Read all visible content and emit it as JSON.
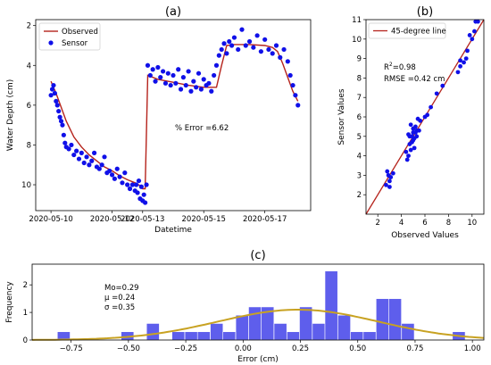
{
  "chart_data": [
    {
      "panel": "(a)",
      "type": "line+scatter",
      "xlabel": "Datetime",
      "ylabel": "Water Depth (cm)",
      "y_inverted": true,
      "ylim": [
        11.3,
        1.7
      ],
      "xlim": [
        "2020-05-09T12:00",
        "2020-05-18T12:00"
      ],
      "xticks": [
        "2020-05-10",
        "2020-05-12",
        "2020-05-13",
        "2020-05-15",
        "2020-05-17"
      ],
      "yticks": [
        2,
        4,
        6,
        8,
        10
      ],
      "legend": [
        "Observed",
        "Sensor"
      ],
      "legend_position": "top-left",
      "annotation": "% Error =6.62",
      "colors": {
        "observed": "#b5231c",
        "sensor": "#1010e8"
      },
      "series": [
        {
          "name": "Observed",
          "kind": "line",
          "x": [
            "2020-05-10T00:00",
            "2020-05-10T04:00",
            "2020-05-10T08:00",
            "2020-05-10T12:00",
            "2020-05-10T18:00",
            "2020-05-11T00:00",
            "2020-05-11T06:00",
            "2020-05-11T12:00",
            "2020-05-11T18:00",
            "2020-05-12T00:00",
            "2020-05-12T06:00",
            "2020-05-12T12:00",
            "2020-05-12T18:00",
            "2020-05-12T22:00",
            "2020-05-13T00:00",
            "2020-05-13T02:00",
            "2020-05-13T04:00",
            "2020-05-13T12:00",
            "2020-05-14T00:00",
            "2020-05-14T12:00",
            "2020-05-15T00:00",
            "2020-05-15T06:00",
            "2020-05-15T10:00",
            "2020-05-15T14:00",
            "2020-05-15T18:00",
            "2020-05-16T00:00",
            "2020-05-16T12:00",
            "2020-05-17T00:00",
            "2020-05-17T06:00",
            "2020-05-17T10:00",
            "2020-05-17T14:00",
            "2020-05-17T18:00",
            "2020-05-17T22:00",
            "2020-05-18T02:00"
          ],
          "y": [
            4.8,
            5.4,
            6.1,
            6.8,
            7.6,
            8.1,
            8.5,
            8.8,
            9.1,
            9.3,
            9.55,
            9.75,
            9.9,
            10.05,
            10.2,
            10.2,
            4.5,
            4.7,
            4.85,
            5.0,
            5.1,
            5.1,
            5.1,
            4.0,
            3.0,
            2.95,
            2.95,
            3.0,
            3.1,
            3.3,
            3.9,
            4.6,
            5.3,
            5.8
          ]
        },
        {
          "name": "Sensor",
          "kind": "scatter",
          "x": [
            "2020-05-10T00:00",
            "2020-05-10T01:00",
            "2020-05-10T02:00",
            "2020-05-10T03:00",
            "2020-05-10T04:00",
            "2020-05-10T05:00",
            "2020-05-10T06:00",
            "2020-05-10T07:00",
            "2020-05-10T08:00",
            "2020-05-10T09:00",
            "2020-05-10T10:00",
            "2020-05-10T11:00",
            "2020-05-10T12:00",
            "2020-05-10T14:00",
            "2020-05-10T16:00",
            "2020-05-10T18:00",
            "2020-05-10T20:00",
            "2020-05-10T22:00",
            "2020-05-11T00:00",
            "2020-05-11T02:00",
            "2020-05-11T04:00",
            "2020-05-11T06:00",
            "2020-05-11T08:00",
            "2020-05-11T10:00",
            "2020-05-11T12:00",
            "2020-05-11T14:00",
            "2020-05-11T16:00",
            "2020-05-11T18:00",
            "2020-05-11T20:00",
            "2020-05-11T22:00",
            "2020-05-12T00:00",
            "2020-05-12T02:00",
            "2020-05-12T04:00",
            "2020-05-12T06:00",
            "2020-05-12T08:00",
            "2020-05-12T10:00",
            "2020-05-12T12:00",
            "2020-05-12T14:00",
            "2020-05-12T16:00",
            "2020-05-12T18:00",
            "2020-05-12T19:00",
            "2020-05-12T20:00",
            "2020-05-12T21:00",
            "2020-05-12T22:00",
            "2020-05-12T23:00",
            "2020-05-13T00:00",
            "2020-05-13T01:00",
            "2020-05-13T02:00",
            "2020-05-13T03:00",
            "2020-05-13T04:00",
            "2020-05-13T06:00",
            "2020-05-13T08:00",
            "2020-05-13T10:00",
            "2020-05-13T12:00",
            "2020-05-13T14:00",
            "2020-05-13T16:00",
            "2020-05-13T18:00",
            "2020-05-13T20:00",
            "2020-05-13T22:00",
            "2020-05-14T00:00",
            "2020-05-14T02:00",
            "2020-05-14T04:00",
            "2020-05-14T06:00",
            "2020-05-14T08:00",
            "2020-05-14T10:00",
            "2020-05-14T12:00",
            "2020-05-14T14:00",
            "2020-05-14T16:00",
            "2020-05-14T18:00",
            "2020-05-14T20:00",
            "2020-05-14T22:00",
            "2020-05-15T00:00",
            "2020-05-15T02:00",
            "2020-05-15T04:00",
            "2020-05-15T06:00",
            "2020-05-15T08:00",
            "2020-05-15T10:00",
            "2020-05-15T12:00",
            "2020-05-15T14:00",
            "2020-05-15T16:00",
            "2020-05-15T18:00",
            "2020-05-15T20:00",
            "2020-05-15T22:00",
            "2020-05-16T00:00",
            "2020-05-16T03:00",
            "2020-05-16T06:00",
            "2020-05-16T09:00",
            "2020-05-16T12:00",
            "2020-05-16T15:00",
            "2020-05-16T18:00",
            "2020-05-16T21:00",
            "2020-05-17T00:00",
            "2020-05-17T03:00",
            "2020-05-17T06:00",
            "2020-05-17T09:00",
            "2020-05-17T12:00",
            "2020-05-17T15:00",
            "2020-05-17T18:00",
            "2020-05-17T20:00",
            "2020-05-17T22:00",
            "2020-05-18T00:00",
            "2020-05-18T02:00"
          ],
          "y": [
            5.5,
            5.2,
            5.0,
            5.4,
            5.8,
            6.0,
            6.3,
            6.6,
            6.8,
            7.0,
            7.5,
            7.9,
            8.1,
            8.2,
            8.0,
            8.5,
            8.3,
            8.7,
            8.4,
            8.9,
            8.6,
            9.0,
            8.8,
            8.4,
            9.1,
            9.2,
            9.0,
            8.6,
            9.4,
            9.3,
            9.5,
            9.7,
            9.2,
            9.6,
            9.9,
            9.4,
            10.0,
            10.2,
            10.0,
            10.3,
            10.0,
            10.4,
            9.8,
            10.7,
            10.1,
            10.8,
            10.5,
            10.9,
            10.0,
            4.0,
            4.5,
            4.2,
            4.8,
            4.1,
            4.6,
            4.3,
            4.9,
            4.4,
            5.0,
            4.5,
            4.9,
            4.2,
            5.2,
            4.6,
            5.0,
            4.3,
            5.3,
            4.8,
            5.1,
            4.4,
            5.2,
            4.7,
            5.0,
            4.9,
            5.3,
            4.5,
            4.0,
            3.5,
            3.2,
            2.9,
            3.4,
            2.8,
            3.0,
            2.6,
            3.2,
            2.2,
            3.0,
            2.8,
            3.1,
            2.5,
            3.3,
            2.7,
            3.2,
            3.4,
            3.0,
            3.6,
            3.2,
            3.8,
            4.5,
            5.0,
            5.5,
            6.0
          ]
        }
      ]
    },
    {
      "panel": "(b)",
      "type": "scatter",
      "xlabel": "Observed Values",
      "ylabel": "Sensor Values",
      "xlim": [
        1.0,
        11.0
      ],
      "ylim": [
        1.0,
        11.0
      ],
      "xticks": [
        2,
        4,
        6,
        8,
        10
      ],
      "yticks": [
        2,
        3,
        4,
        5,
        6,
        7,
        8,
        9,
        10,
        11
      ],
      "legend": [
        "45-degree line"
      ],
      "legend_position": "top-left",
      "stats": {
        "r2_label": "R",
        "r2_exp": "2",
        "r2_value": "=0.98",
        "rmse": "RMSE =0.42 cm"
      },
      "colors": {
        "line": "#b5231c",
        "points": "#1010e8"
      },
      "reference_line": {
        "x": [
          1,
          11
        ],
        "y": [
          1,
          11
        ]
      },
      "points": {
        "x": [
          2.7,
          3.0,
          2.9,
          3.1,
          3.3,
          2.8,
          4.5,
          4.6,
          4.8,
          4.7,
          5.0,
          4.9,
          5.1,
          5.2,
          5.3,
          4.6,
          4.4,
          5.0,
          5.5,
          5.2,
          5.6,
          4.8,
          5.4,
          6.0,
          6.5,
          7.0,
          7.5,
          8.8,
          9.0,
          9.3,
          9.5,
          9.8,
          10.0,
          10.2,
          10.3,
          10.5,
          4.7,
          5.1,
          4.9,
          5.0,
          9.0,
          9.6,
          3.0,
          5.3,
          6.2
        ],
        "y": [
          2.5,
          2.4,
          3.0,
          2.9,
          3.1,
          3.2,
          3.8,
          4.0,
          4.3,
          4.6,
          4.8,
          5.0,
          4.9,
          5.2,
          5.3,
          5.1,
          4.2,
          5.4,
          5.3,
          5.5,
          5.8,
          5.6,
          5.9,
          6.0,
          6.5,
          7.2,
          7.6,
          8.3,
          8.9,
          8.8,
          9.0,
          10.2,
          10.0,
          10.4,
          10.9,
          10.9,
          5.0,
          4.4,
          4.7,
          5.2,
          8.6,
          9.4,
          2.7,
          5.0,
          6.1
        ]
      }
    },
    {
      "panel": "(c)",
      "type": "histogram",
      "xlabel": "Error (cm)",
      "ylabel": "Frequency",
      "xlim": [
        -0.92,
        1.05
      ],
      "ylim": [
        0,
        2.75
      ],
      "xticks": [
        -0.75,
        -0.5,
        -0.25,
        0.0,
        0.25,
        0.5,
        0.75,
        1.0
      ],
      "xtick_labels": [
        "−0.75",
        "−0.50",
        "−0.25",
        "0.00",
        "0.25",
        "0.50",
        "0.75",
        "1.00"
      ],
      "yticks": [
        0,
        1,
        2
      ],
      "stats_text": [
        "Mo=0.29",
        "μ =0.24",
        "σ =0.35"
      ],
      "colors": {
        "bars": "#3a3ae8",
        "curve": "#c8a222"
      },
      "bin_width": 0.0555,
      "bins_left": [
        -0.81,
        -0.532,
        -0.421,
        -0.31,
        -0.254,
        -0.199,
        -0.143,
        -0.088,
        -0.032,
        0.024,
        0.079,
        0.135,
        0.191,
        0.246,
        0.302,
        0.357,
        0.413,
        0.468,
        0.524,
        0.58,
        0.635,
        0.691,
        0.913
      ],
      "counts": [
        0.3,
        0.3,
        0.6,
        0.3,
        0.3,
        0.3,
        0.6,
        0.3,
        0.9,
        1.2,
        1.2,
        0.6,
        0.3,
        1.2,
        0.6,
        2.5,
        0.9,
        0.3,
        0.3,
        1.5,
        1.5,
        0.6,
        0.3
      ],
      "normal_curve": {
        "mu": 0.24,
        "sigma": 0.35,
        "peak": 1.1
      }
    }
  ]
}
